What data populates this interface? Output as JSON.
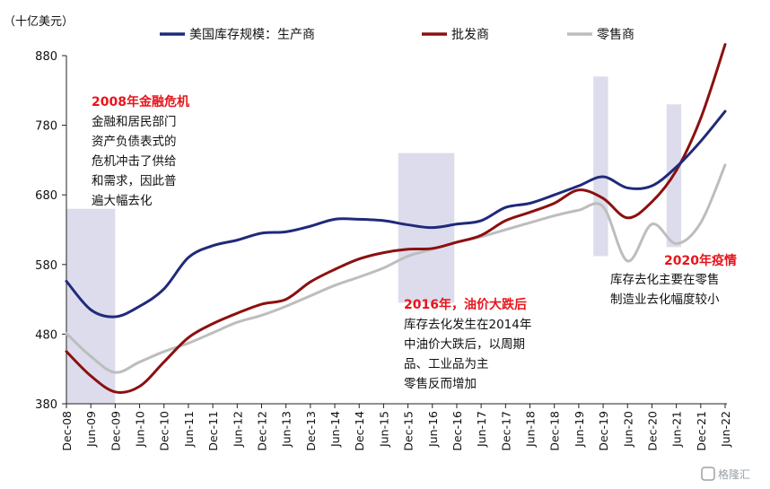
{
  "chart_data": {
    "type": "line",
    "unit_label": "（十亿美元）",
    "title": "",
    "xlabel": "",
    "ylabel": "",
    "ylim": [
      380,
      900
    ],
    "yticks": [
      380,
      480,
      580,
      680,
      780,
      880
    ],
    "x_tick_labels": [
      "Dec-08",
      "Jun-09",
      "Dec-09",
      "Jun-10",
      "Dec-10",
      "Jun-11",
      "Dec-11",
      "Jun-12",
      "Dec-12",
      "Jun-13",
      "Dec-13",
      "Jun-14",
      "Dec-14",
      "Jun-15",
      "Dec-15",
      "Jun-16",
      "Dec-16",
      "Jun-17",
      "Dec-17",
      "Jun-18",
      "Dec-18",
      "Jun-19",
      "Dec-19",
      "Jun-20",
      "Dec-20",
      "Jun-21",
      "Dec-21",
      "Jun-22"
    ],
    "x": [
      "Dec-08",
      "Jun-09",
      "Dec-09",
      "Jun-10",
      "Dec-10",
      "Jun-11",
      "Dec-11",
      "Jun-12",
      "Dec-12",
      "Jun-13",
      "Dec-13",
      "Jun-14",
      "Dec-14",
      "Jun-15",
      "Dec-15",
      "Jun-16",
      "Dec-16",
      "Jun-17",
      "Dec-17",
      "Jun-18",
      "Dec-18",
      "Jun-19",
      "Dec-19",
      "Jun-20",
      "Dec-20",
      "Jun-21",
      "Dec-21",
      "Jun-22"
    ],
    "series": [
      {
        "name": "美国库存规模：生产商",
        "color": "#1f2a7a",
        "values": [
          556,
          515,
          505,
          520,
          545,
          590,
          607,
          615,
          625,
          627,
          635,
          645,
          645,
          643,
          637,
          633,
          638,
          643,
          662,
          668,
          680,
          693,
          706,
          690,
          693,
          720,
          757,
          800
        ]
      },
      {
        "name": "批发商",
        "color": "#8b1010",
        "values": [
          455,
          420,
          397,
          405,
          440,
          475,
          495,
          510,
          523,
          530,
          555,
          573,
          588,
          597,
          602,
          603,
          612,
          622,
          643,
          655,
          668,
          687,
          675,
          647,
          670,
          715,
          790,
          896
        ]
      },
      {
        "name": "零售商",
        "color": "#bdbdbd",
        "values": [
          481,
          448,
          425,
          440,
          455,
          467,
          482,
          497,
          507,
          520,
          535,
          550,
          562,
          575,
          592,
          602,
          612,
          620,
          630,
          640,
          650,
          658,
          663,
          585,
          638,
          610,
          640,
          723
        ]
      }
    ],
    "shaded_periods": [
      {
        "from": 0,
        "to": 2,
        "ymin": 380,
        "ymax": 660
      },
      {
        "from": 13.6,
        "to": 15.9,
        "ymin": 525,
        "ymax": 740
      },
      {
        "from": 21.6,
        "to": 22.2,
        "ymin": 592,
        "ymax": 850
      },
      {
        "from": 24.6,
        "to": 25.2,
        "ymin": 605,
        "ymax": 810
      }
    ],
    "legend_position": "top",
    "grid": false,
    "annotations": [
      {
        "title": "2008年金融危机",
        "lines": [
          "金融和居民部门",
          "资产负债表式的",
          "危机冲击了供给",
          "和需求，因此普",
          "遍大幅去化"
        ]
      },
      {
        "title": "2016年，油价大跌后",
        "lines": [
          "库存去化发生在2014年",
          "中油价大跌后，以周期",
          "品、工业品为主",
          "零售反而增加"
        ]
      },
      {
        "title": "2020年疫情",
        "lines": [
          "库存去化主要在零售",
          "制造业去化幅度较小"
        ]
      }
    ]
  },
  "watermark": "格隆汇"
}
